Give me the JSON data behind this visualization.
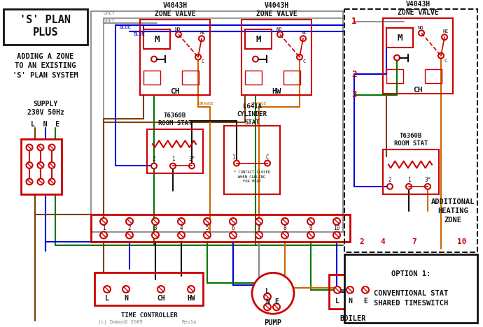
{
  "colors": {
    "red": "#cc0000",
    "blue": "#0000dd",
    "green": "#007700",
    "grey": "#888888",
    "orange": "#cc6600",
    "brown": "#7B3F00",
    "black": "#111111",
    "white": "#ffffff",
    "lt_grey": "#e8e8e8"
  },
  "title_text": "'S' PLAN\nPLUS",
  "subtitle_text": "ADDING A ZONE\nTO AN EXISTING\n'S' PLAN SYSTEM",
  "supply_text": "SUPPLY\n230V 50Hz",
  "lne_text": "L  N  E",
  "option_text": "OPTION 1:\n\nCONVENTIONAL STAT\nSHARED TIMESWITCH",
  "additional_text": "ADDITIONAL\nHEATING\nZONE",
  "copyright": "(c) DamonD 2009",
  "rev": "Rev1a"
}
